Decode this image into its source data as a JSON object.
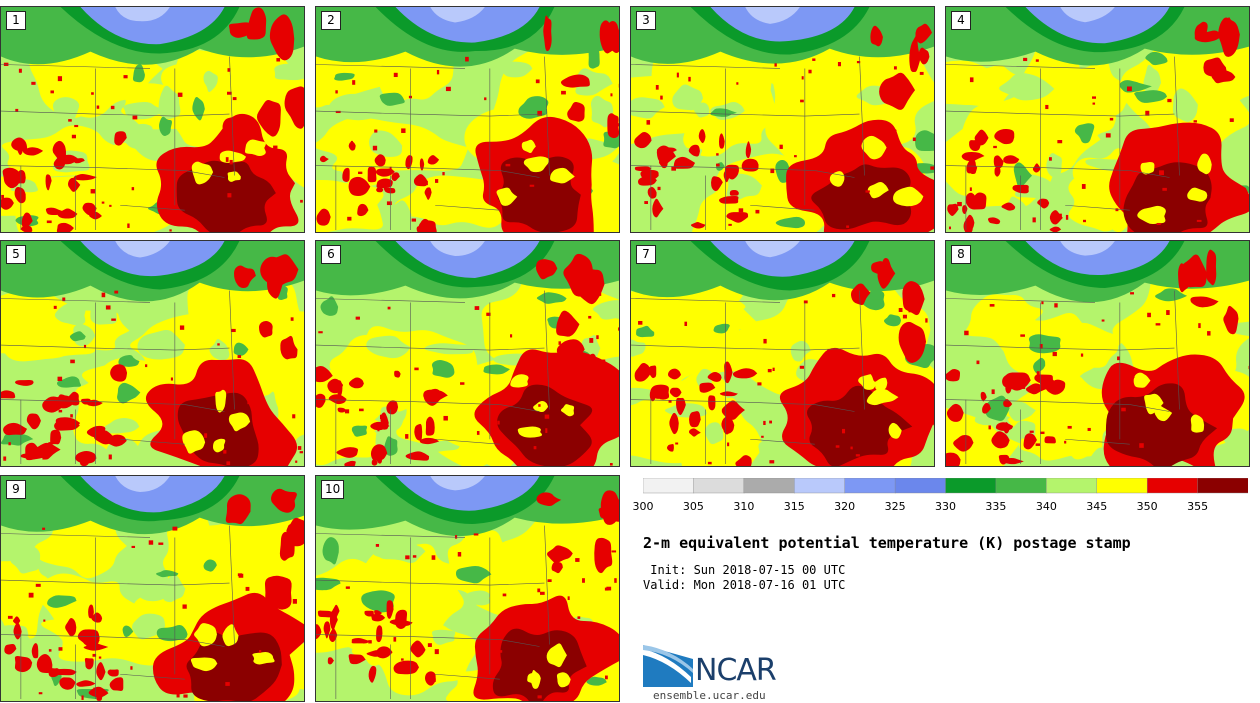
{
  "panels": [
    {
      "label": "1"
    },
    {
      "label": "2"
    },
    {
      "label": "3"
    },
    {
      "label": "4"
    },
    {
      "label": "5"
    },
    {
      "label": "6"
    },
    {
      "label": "7"
    },
    {
      "label": "8"
    },
    {
      "label": "9"
    },
    {
      "label": "10"
    }
  ],
  "colorbar": {
    "ticks": [
      "300",
      "305",
      "310",
      "315",
      "320",
      "325",
      "330",
      "335",
      "340",
      "345",
      "350",
      "355"
    ],
    "colors": [
      "#f2f2f2",
      "#dcdcdc",
      "#ababab",
      "#b9c9fb",
      "#7d98f4",
      "#6b87ec",
      "#0b9a2a",
      "#46b847",
      "#b4f46c",
      "#ffff00",
      "#e60000",
      "#8b0000"
    ]
  },
  "field_colors": {
    "pale_blue": "#b9c9fb",
    "mid_blue": "#7d98f4",
    "dark_green": "#0b9a2a",
    "green": "#46b847",
    "light_green": "#b4f46c",
    "yellow": "#ffff00",
    "red": "#e60000",
    "dark_red": "#8b0000"
  },
  "title": "2-m equivalent potential temperature (K) postage stamp",
  "init": " Init: Sun 2018-07-15 00 UTC",
  "valid": "Valid: Mon 2018-07-16 01 UTC",
  "logo": {
    "text": "NCAR",
    "color": "#1b3f6b"
  },
  "website": "ensemble.ucar.edu"
}
